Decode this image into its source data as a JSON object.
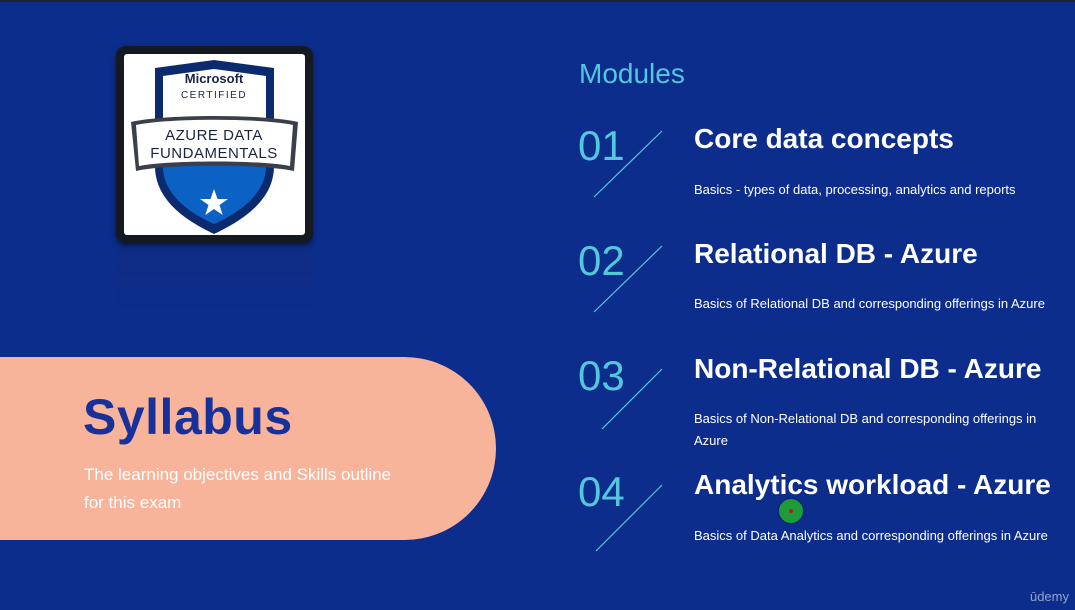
{
  "badge": {
    "brand": "Microsoft",
    "certified": "CERTIFIED",
    "line1": "AZURE DATA",
    "line2": "FUNDAMENTALS"
  },
  "syllabus": {
    "title": "Syllabus",
    "subtitle_line1": "The learning objectives and Skills outline",
    "subtitle_line2": "for this exam"
  },
  "modules": {
    "heading": "Modules",
    "items": [
      {
        "number": "01",
        "title": "Core data concepts",
        "description": "Basics  - types of data, processing, analytics and reports"
      },
      {
        "number": "02",
        "title": "Relational DB - Azure",
        "description": "Basics of Relational DB and corresponding  offerings in Azure"
      },
      {
        "number": "03",
        "title": "Non-Relational DB - Azure",
        "description": "Basics of Non-Relational DB and corresponding offerings in Azure"
      },
      {
        "number": "04",
        "title": "Analytics workload - Azure",
        "description": "Basics of Data Analytics and corresponding offerings in Azure"
      }
    ]
  },
  "watermark": "ūdemy",
  "colors": {
    "background": "#0c2d8c",
    "accent": "#55c7dc",
    "pill": "#f8b39b",
    "syllabus_title": "#17309a",
    "badge_blue": "#0b61c4",
    "badge_navy": "#0c2b6e"
  }
}
